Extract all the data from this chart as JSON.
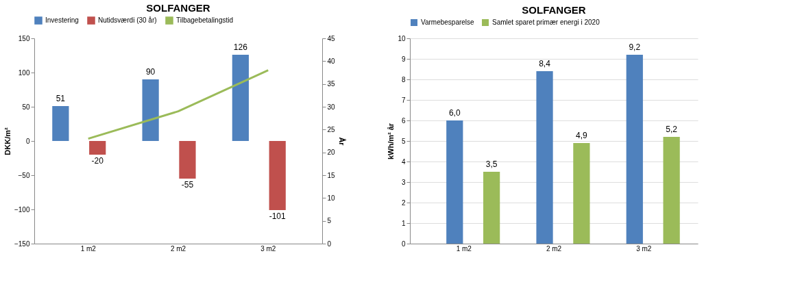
{
  "chart_data": [
    {
      "type": "bar",
      "title": "SOLFANGER",
      "categories": [
        "1 m2",
        "2 m2",
        "3 m2"
      ],
      "ylabel": "DKK/m²",
      "y2label": "År",
      "ylim": [
        -150,
        150
      ],
      "yticks": [
        -150,
        -100,
        -50,
        0,
        50,
        100,
        150
      ],
      "y2lim": [
        0,
        45
      ],
      "y2ticks": [
        0,
        5,
        10,
        15,
        20,
        25,
        30,
        35,
        40,
        45
      ],
      "grid": false,
      "legend": "top",
      "series": [
        {
          "name": "Investering",
          "color": "#4f81bd",
          "values": [
            51,
            90,
            126
          ],
          "value_labels": [
            "51",
            "90",
            "126"
          ]
        },
        {
          "name": "Nutidsværdi (30 år)",
          "color": "#c0504d",
          "values": [
            -20,
            -55,
            -101
          ],
          "value_labels": [
            "-20",
            "-55",
            "-101"
          ]
        },
        {
          "name": "Tilbagebetalingstid",
          "color": "#9bbb59",
          "type": "line",
          "axis": "y2",
          "marker": "none",
          "line_style": "solid",
          "values": [
            23,
            29,
            38
          ]
        }
      ]
    },
    {
      "type": "bar",
      "title": "SOLFANGER",
      "categories": [
        "1 m2",
        "2 m2",
        "3 m2"
      ],
      "ylabel": "kWh/m² år",
      "ylim": [
        0,
        10
      ],
      "yticks": [
        0,
        1,
        2,
        3,
        4,
        5,
        6,
        7,
        8,
        9,
        10
      ],
      "grid": "y",
      "legend": "top",
      "series": [
        {
          "name": "Varmebesparelse",
          "color": "#4f81bd",
          "values": [
            6.0,
            8.4,
            9.2
          ],
          "value_labels": [
            "6,0",
            "8,4",
            "9,2"
          ]
        },
        {
          "name": "Samlet sparet primær energi i 2020",
          "color": "#9bbb59",
          "values": [
            3.5,
            4.9,
            5.2
          ],
          "value_labels": [
            "3,5",
            "4,9",
            "5,2"
          ]
        }
      ]
    }
  ]
}
